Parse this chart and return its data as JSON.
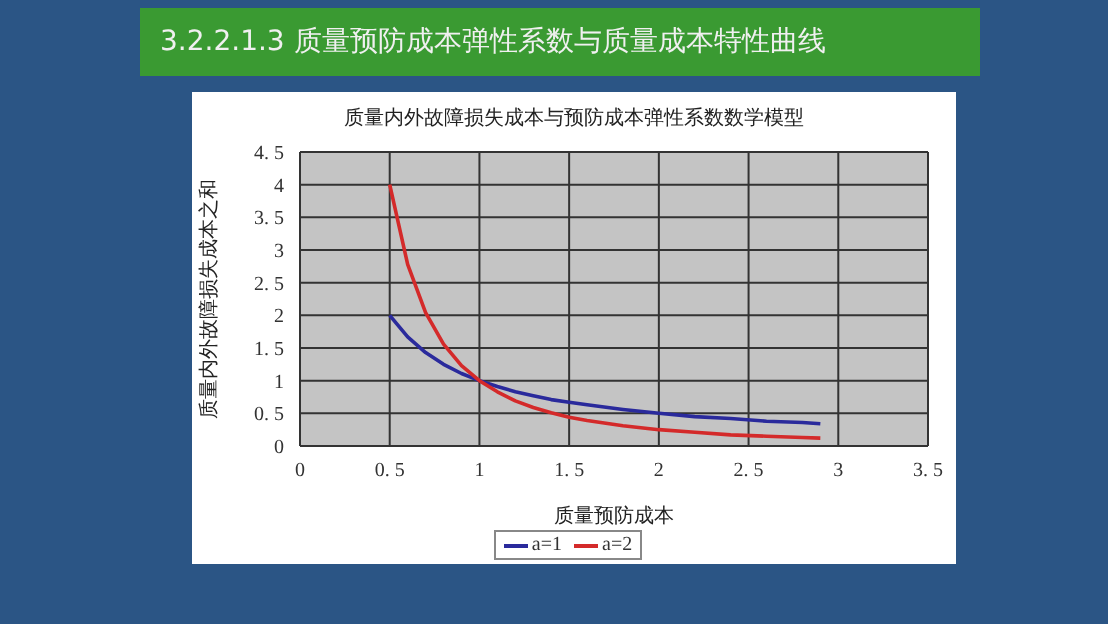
{
  "chart_data": {
    "type": "line",
    "title": "3.2.2.1.3 质量预防成本弹性系数与质量成本特性曲线",
    "subtitle": "质量内外故障损失成本与预防成本弹性系数数学模型",
    "xlabel": "质量预防成本",
    "ylabel": "质量内外故障损失成本之和",
    "x": [
      0.5,
      0.6,
      0.7,
      0.8,
      0.9,
      1.0,
      1.1,
      1.2,
      1.3,
      1.4,
      1.5,
      1.6,
      1.8,
      2.0,
      2.2,
      2.4,
      2.6,
      2.8,
      2.9
    ],
    "series": [
      {
        "name": "a=1",
        "color": "#2a2a9c",
        "values": [
          2,
          1.67,
          1.43,
          1.25,
          1.11,
          1,
          0.91,
          0.83,
          0.77,
          0.71,
          0.67,
          0.63,
          0.56,
          0.5,
          0.45,
          0.42,
          0.38,
          0.36,
          0.34
        ]
      },
      {
        "name": "a=2",
        "color": "#d42a2a",
        "values": [
          4,
          2.78,
          2.04,
          1.56,
          1.23,
          1,
          0.83,
          0.69,
          0.59,
          0.51,
          0.44,
          0.39,
          0.31,
          0.25,
          0.21,
          0.17,
          0.15,
          0.13,
          0.12
        ]
      }
    ],
    "xlim": [
      0,
      3.5
    ],
    "xticks": [
      0,
      0.5,
      1,
      1.5,
      2,
      2.5,
      3,
      3.5
    ],
    "ylim": [
      0,
      4.5
    ],
    "yticks": [
      0,
      0.5,
      1,
      1.5,
      2,
      2.5,
      3,
      3.5,
      4,
      4.5
    ],
    "grid": true,
    "legend": "bottom"
  }
}
